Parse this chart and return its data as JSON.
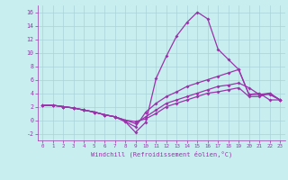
{
  "xlabel": "Windchill (Refroidissement éolien,°C)",
  "bg_color": "#c8eef0",
  "grid_color": "#a8d4d8",
  "line_color": "#9933aa",
  "xlim": [
    -0.5,
    23.5
  ],
  "ylim": [
    -3.0,
    17.0
  ],
  "xticks": [
    0,
    1,
    2,
    3,
    4,
    5,
    6,
    7,
    8,
    9,
    10,
    11,
    12,
    13,
    14,
    15,
    16,
    17,
    18,
    19,
    20,
    21,
    22,
    23
  ],
  "yticks": [
    -2,
    0,
    2,
    4,
    6,
    8,
    10,
    12,
    14,
    16
  ],
  "line1_x": [
    0,
    1,
    2,
    3,
    4,
    5,
    6,
    7,
    8,
    9,
    10,
    11,
    12,
    13,
    14,
    15,
    16,
    17,
    18,
    19,
    20,
    21,
    22,
    23
  ],
  "line1_y": [
    2.2,
    2.2,
    2.0,
    1.8,
    1.5,
    1.2,
    0.8,
    0.5,
    -0.2,
    -1.8,
    -0.3,
    6.2,
    9.5,
    12.5,
    14.5,
    16.0,
    15.0,
    10.5,
    9.0,
    7.5,
    3.8,
    4.0,
    3.0,
    3.0
  ],
  "line2_x": [
    0,
    1,
    2,
    3,
    4,
    5,
    6,
    7,
    8,
    9,
    10,
    11,
    12,
    13,
    14,
    15,
    16,
    17,
    18,
    19,
    20,
    21,
    22,
    23
  ],
  "line2_y": [
    2.2,
    2.2,
    2.0,
    1.8,
    1.5,
    1.2,
    0.8,
    0.5,
    -0.2,
    -1.0,
    1.2,
    2.5,
    3.5,
    4.2,
    5.0,
    5.5,
    6.0,
    6.5,
    7.0,
    7.5,
    3.8,
    3.8,
    3.8,
    3.0
  ],
  "line3_x": [
    0,
    1,
    2,
    3,
    4,
    5,
    6,
    7,
    8,
    9,
    10,
    11,
    12,
    13,
    14,
    15,
    16,
    17,
    18,
    19,
    20,
    21,
    22,
    23
  ],
  "line3_y": [
    2.2,
    2.2,
    2.0,
    1.8,
    1.5,
    1.2,
    0.8,
    0.5,
    0.0,
    -0.5,
    0.5,
    1.5,
    2.5,
    3.0,
    3.5,
    4.0,
    4.5,
    5.0,
    5.2,
    5.5,
    4.8,
    3.8,
    4.0,
    3.0
  ],
  "line4_x": [
    0,
    1,
    2,
    3,
    4,
    5,
    6,
    7,
    8,
    9,
    10,
    11,
    12,
    13,
    14,
    15,
    16,
    17,
    18,
    19,
    20,
    21,
    22,
    23
  ],
  "line4_y": [
    2.2,
    2.2,
    2.0,
    1.8,
    1.5,
    1.2,
    0.8,
    0.5,
    0.0,
    -0.2,
    0.2,
    1.0,
    2.0,
    2.5,
    3.0,
    3.5,
    4.0,
    4.2,
    4.5,
    4.8,
    3.5,
    3.5,
    4.0,
    3.0
  ]
}
